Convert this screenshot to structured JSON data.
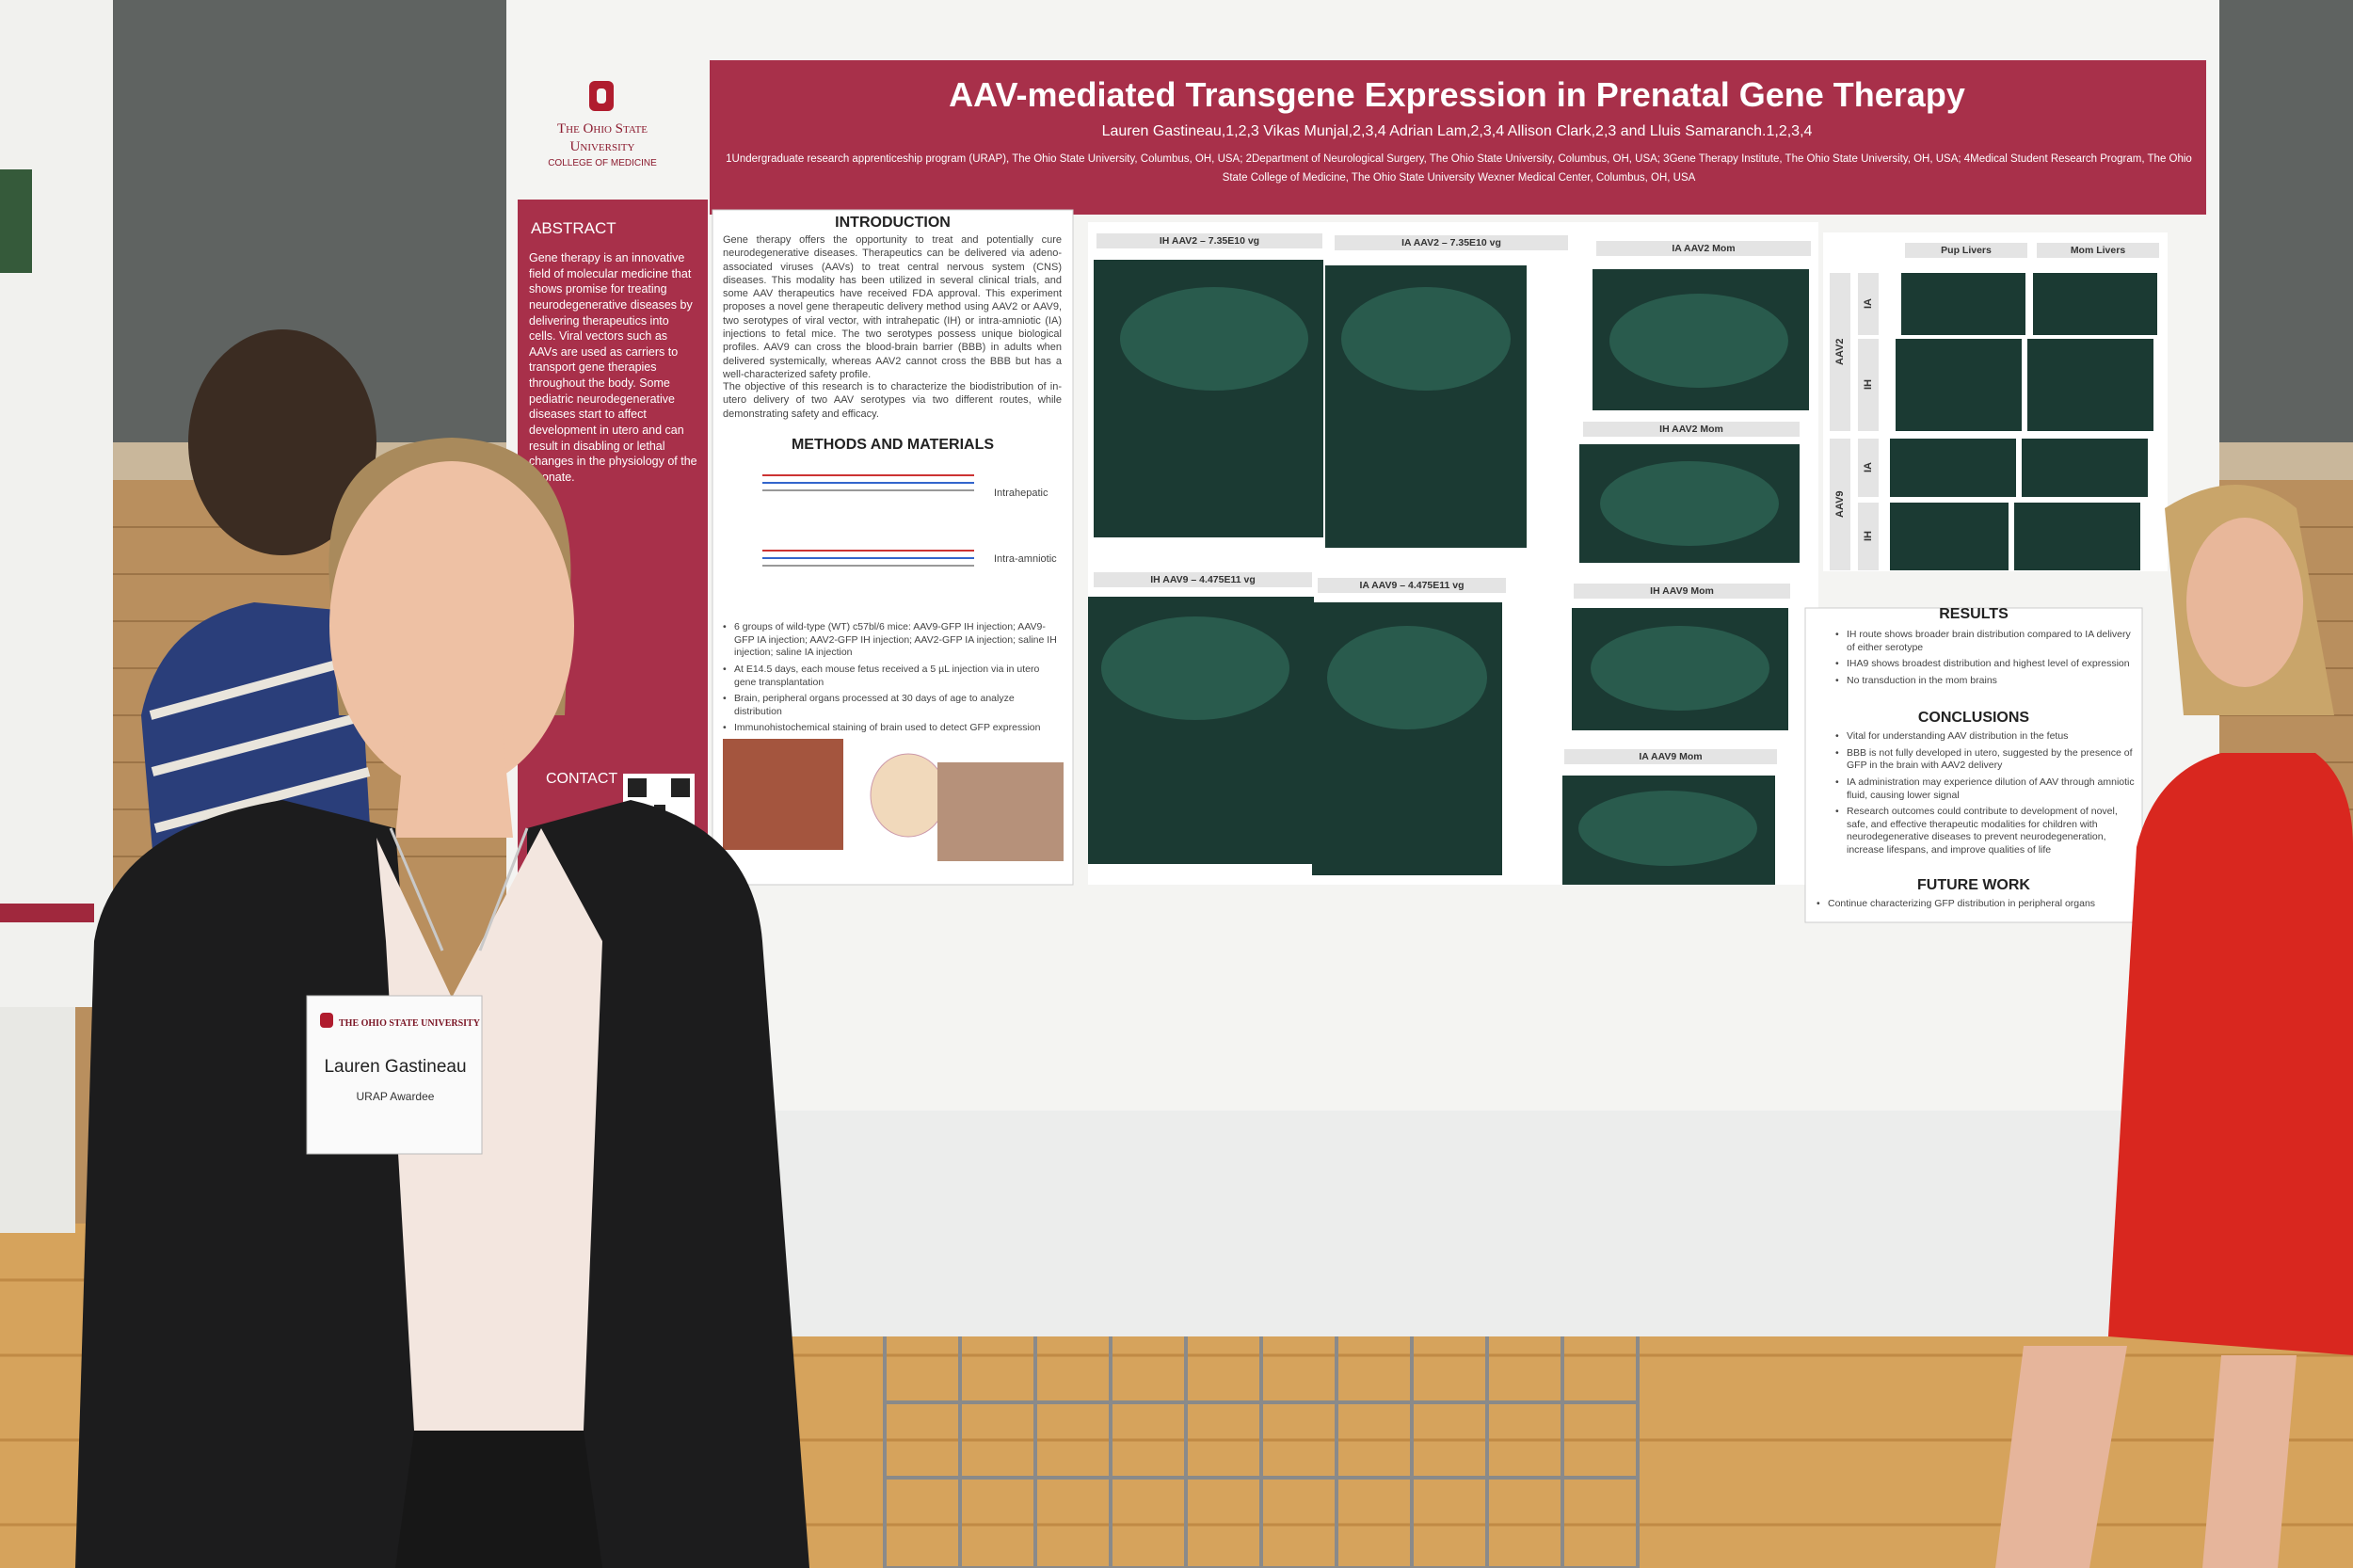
{
  "poster": {
    "institution": "The Ohio State University",
    "college": "College of Medicine",
    "title": "AAV-mediated Transgene Expression in Prenatal Gene Therapy",
    "authors": "Lauren Gastineau,1,2,3 Vikas Munjal,2,3,4 Adrian Lam,2,3,4 Allison Clark,2,3 and Lluis Samaranch.1,2,3,4",
    "affiliations": [
      "1Undergraduate research apprenticeship program (URAP), The Ohio State University, Columbus, OH, USA; 2Department of Neurological Surgery, The Ohio State University, Columbus, OH, USA; 3Gene Therapy Institute, The Ohio State University, OH, USA; 4Medical Student Research Program, The Ohio",
      "State College of Medicine, The Ohio State University Wexner Medical Center, Columbus, OH, USA"
    ],
    "abstract": {
      "heading": "ABSTRACT",
      "text": "Gene therapy is an innovative field of molecular medicine that shows promise for treating neurodegenerative diseases by delivering therapeutics into cells. Viral vectors such as AAVs are used as carriers to transport gene therapies throughout the body. Some pediatric neurodegenerative diseases start to affect development in utero and can result in disabling or lethal changes in the physiology of the neonate."
    },
    "contact": "CONTACT",
    "introduction": {
      "heading": "INTRODUCTION",
      "paragraphs": [
        "Gene therapy offers the opportunity to treat and potentially cure neurodegenerative diseases. Therapeutics can be delivered via adeno-associated viruses (AAVs) to treat central nervous system (CNS) diseases. This modality has been utilized in several clinical trials, and some AAV therapeutics have received FDA approval. This experiment proposes a novel gene therapeutic delivery method using AAV2 or AAV9, two serotypes of viral vector, with intrahepatic (IH) or intra-amniotic (IA) injections to fetal mice. The two serotypes possess unique biological profiles. AAV9 can cross the blood-brain barrier (BBB) in adults when delivered systemically, whereas AAV2 cannot cross the BBB but has a well-characterized safety profile.",
        "The objective of this research is to characterize the biodistribution of in-utero delivery of two AAV serotypes via two different routes, while demonstrating safety and efficacy."
      ]
    },
    "methods": {
      "heading": "METHODS AND MATERIALS",
      "routes": [
        "Intrahepatic",
        "Intra-amniotic"
      ],
      "bullets": [
        "6 groups of wild-type (WT) c57bl/6 mice: AAV9-GFP IH injection; AAV9-GFP IA injection; AAV2-GFP IH injection; AAV2-GFP IA injection; saline IH injection; saline IA injection",
        "At E14.5 days, each mouse fetus received a 5 µL injection via in utero gene transplantation",
        "Brain, peripheral organs processed at 30 days of age to analyze distribution",
        "Immunohistochemical staining of brain used to detect GFP expression"
      ]
    },
    "panels": [
      "IH AAV2 – 7.35E10 vg",
      "IA AAV2 – 7.35E10 vg",
      "IA AAV2 Mom",
      "IH AAV2 Mom",
      "IH AAV9 – 4.475E11 vg",
      "IA AAV9 – 4.475E11 vg",
      "IH AAV9 Mom",
      "IA AAV9 Mom"
    ],
    "livers": {
      "columns": [
        "Pup Livers",
        "Mom Livers"
      ],
      "rows": [
        "AAV2",
        "AAV9"
      ],
      "routes": [
        "IA",
        "IH",
        "IA",
        "IH"
      ]
    },
    "results": {
      "heading": "RESULTS",
      "bullets": [
        "IH route shows broader brain distribution compared to IA delivery of either serotype",
        "IHA9 shows broadest distribution and highest level of expression",
        "No transduction in the mom brains"
      ]
    },
    "conclusions": {
      "heading": "CONCLUSIONS",
      "bullets": [
        "Vital for understanding AAV distribution in the fetus",
        "BBB is not fully developed in utero, suggested by the presence of GFP in the brain with AAV2 delivery",
        "IA administration may experience dilution of AAV through amniotic fluid, causing lower signal",
        "Research outcomes could contribute to development of novel, safe, and effective therapeutic modalities for children with neurodegenerative diseases to prevent neurodegeneration, increase lifespans, and improve qualities of life"
      ]
    },
    "future_work": {
      "heading": "FUTURE WORK",
      "bullets": [
        "Continue characterizing GFP distribution in peripheral organs"
      ]
    }
  },
  "badge": {
    "university": "The Ohio State University",
    "name": "Lauren Gastineau",
    "role": "URAP Awardee"
  }
}
